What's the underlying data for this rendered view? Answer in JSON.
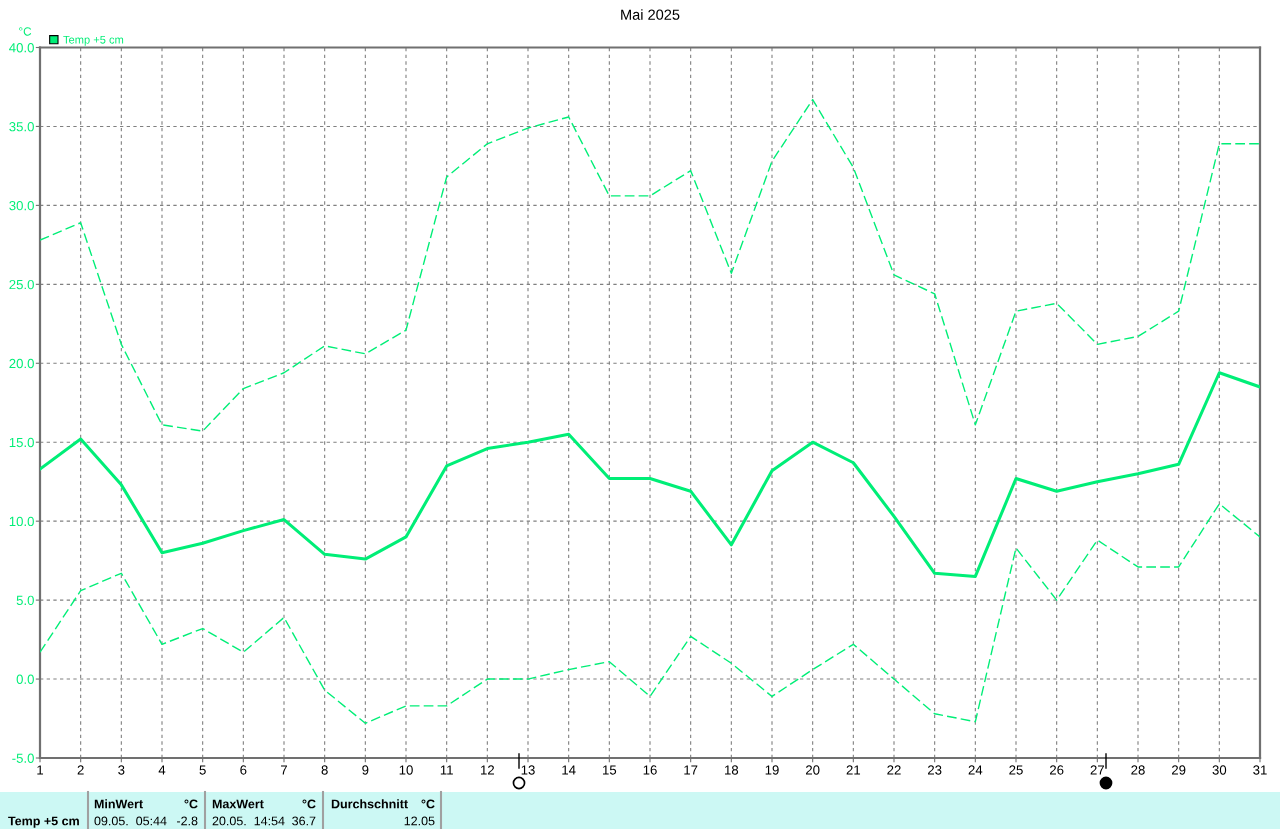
{
  "chart_data": {
    "type": "line",
    "title": "Mai 2025",
    "ylabel": "°C",
    "x": [
      1,
      2,
      3,
      4,
      5,
      6,
      7,
      8,
      9,
      10,
      11,
      12,
      13,
      14,
      15,
      16,
      17,
      18,
      19,
      20,
      21,
      22,
      23,
      24,
      25,
      26,
      27,
      28,
      29,
      30,
      31
    ],
    "xlim": [
      1,
      31
    ],
    "xticks": [
      1,
      2,
      3,
      4,
      5,
      6,
      7,
      8,
      9,
      10,
      11,
      12,
      13,
      14,
      15,
      16,
      17,
      18,
      19,
      20,
      21,
      22,
      23,
      24,
      25,
      26,
      27,
      28,
      29,
      30,
      31
    ],
    "ylim": [
      -5,
      40
    ],
    "yticks": [
      {
        "value": -5,
        "label": "-5.0"
      },
      {
        "value": 0,
        "label": "0.0"
      },
      {
        "value": 5,
        "label": "5.0"
      },
      {
        "value": 10,
        "label": "10.0"
      },
      {
        "value": 15,
        "label": "15.0"
      },
      {
        "value": 20,
        "label": "20.0"
      },
      {
        "value": 25,
        "label": "25.0"
      },
      {
        "value": 30,
        "label": "30.0"
      },
      {
        "value": 35,
        "label": "35.0"
      },
      {
        "value": 40,
        "label": "40.0"
      }
    ],
    "series": [
      {
        "name": "Temp +5 cm",
        "color": "#00ee77",
        "line_style": "solid",
        "values": [
          13.3,
          15.2,
          12.3,
          8.0,
          8.6,
          9.4,
          10.1,
          7.9,
          7.6,
          9.0,
          13.5,
          14.6,
          15.0,
          15.5,
          12.7,
          12.7,
          11.9,
          8.5,
          13.2,
          15.0,
          13.7,
          10.3,
          6.7,
          6.5,
          12.7,
          11.9,
          12.5,
          13.0,
          13.6,
          19.4,
          18.5
        ]
      },
      {
        "color": "#00ee77",
        "line_style": "dashed",
        "values": [
          27.8,
          28.9,
          21.2,
          16.1,
          15.7,
          18.4,
          19.4,
          21.1,
          20.6,
          22.1,
          31.8,
          33.9,
          34.9,
          35.6,
          30.6,
          30.6,
          32.2,
          25.7,
          32.8,
          36.7,
          32.4,
          25.6,
          24.4,
          16.1,
          23.3,
          23.8,
          21.2,
          21.7,
          23.3,
          33.9,
          33.9
        ]
      },
      {
        "color": "#00ee77",
        "line_style": "dashed",
        "values": [
          1.7,
          5.6,
          6.7,
          2.2,
          3.2,
          1.7,
          3.9,
          -0.7,
          -2.8,
          -1.7,
          -1.7,
          0.0,
          0.0,
          0.6,
          1.1,
          -1.1,
          2.7,
          1.0,
          -1.1,
          0.6,
          2.2,
          0.0,
          -2.2,
          -2.7,
          8.3,
          5.0,
          8.8,
          7.1,
          7.1,
          11.1,
          9.0
        ]
      }
    ],
    "grid": true,
    "legend": "top left",
    "annotations": [
      "Temp +5 cm",
      "MinWert",
      "°C",
      "09.05.  05:44",
      "-2.8",
      "MaxWert",
      "°C",
      "20.05.  14:54",
      "36.7",
      "Durchschnitt",
      "°C",
      "12.05"
    ]
  }
}
